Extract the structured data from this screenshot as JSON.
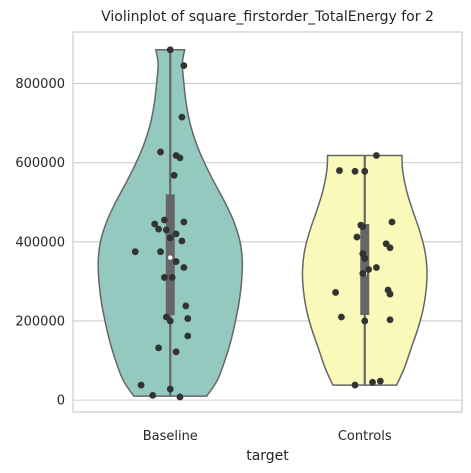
{
  "chart_data": {
    "type": "violin",
    "title": "Violinplot of square_firstorder_TotalEnergy for 2",
    "xlabel": "target",
    "ylabel": "",
    "categories": [
      "Baseline",
      "Controls"
    ],
    "ylim": [
      -30000,
      930000
    ],
    "yticks": [
      0,
      200000,
      400000,
      600000,
      800000
    ],
    "ytick_labels": [
      "0",
      "200000",
      "400000",
      "600000",
      "800000"
    ],
    "grid": true,
    "colors": {
      "Baseline": "#93c9be",
      "Controls": "#f9f9b9",
      "outline": "#666666",
      "points": "#333333",
      "grid": "#cccccc",
      "box": "#666666",
      "median": "#ffffff"
    },
    "violins": [
      {
        "name": "Baseline",
        "range": [
          10000,
          885000
        ],
        "profile": [
          [
            10000,
            0.48
          ],
          [
            50000,
            0.62
          ],
          [
            100000,
            0.72
          ],
          [
            150000,
            0.8
          ],
          [
            200000,
            0.86
          ],
          [
            250000,
            0.91
          ],
          [
            300000,
            0.94
          ],
          [
            350000,
            0.95
          ],
          [
            400000,
            0.92
          ],
          [
            450000,
            0.84
          ],
          [
            500000,
            0.72
          ],
          [
            550000,
            0.58
          ],
          [
            600000,
            0.45
          ],
          [
            650000,
            0.34
          ],
          [
            700000,
            0.26
          ],
          [
            750000,
            0.21
          ],
          [
            800000,
            0.18
          ],
          [
            850000,
            0.16
          ],
          [
            885000,
            0.19
          ]
        ],
        "box": {
          "q1": 215000,
          "median": 360000,
          "q3": 520000
        },
        "whisker": [
          10000,
          885000
        ],
        "points": [
          [
            0.0,
            885000
          ],
          [
            0.07,
            845000
          ],
          [
            0.06,
            715000
          ],
          [
            -0.05,
            627000
          ],
          [
            0.03,
            618000
          ],
          [
            0.05,
            612000
          ],
          [
            0.02,
            568000
          ],
          [
            -0.03,
            455000
          ],
          [
            0.07,
            450000
          ],
          [
            -0.08,
            445000
          ],
          [
            -0.06,
            432000
          ],
          [
            -0.02,
            430000
          ],
          [
            0.03,
            420000
          ],
          [
            0.0,
            410000
          ],
          [
            0.06,
            402000
          ],
          [
            -0.18,
            375000
          ],
          [
            -0.05,
            375000
          ],
          [
            0.03,
            350000
          ],
          [
            0.07,
            335000
          ],
          [
            -0.03,
            310000
          ],
          [
            0.01,
            310000
          ],
          [
            0.08,
            238000
          ],
          [
            0.09,
            206000
          ],
          [
            -0.02,
            210000
          ],
          [
            0.0,
            200000
          ],
          [
            0.09,
            162000
          ],
          [
            -0.06,
            132000
          ],
          [
            0.03,
            122000
          ],
          [
            -0.15,
            38000
          ],
          [
            0.0,
            28000
          ],
          [
            -0.09,
            12000
          ],
          [
            0.05,
            8000
          ]
        ]
      },
      {
        "name": "Controls",
        "range": [
          38000,
          618000
        ],
        "profile": [
          [
            38000,
            0.42
          ],
          [
            80000,
            0.52
          ],
          [
            130000,
            0.61
          ],
          [
            180000,
            0.7
          ],
          [
            230000,
            0.77
          ],
          [
            280000,
            0.81
          ],
          [
            330000,
            0.82
          ],
          [
            380000,
            0.79
          ],
          [
            430000,
            0.72
          ],
          [
            480000,
            0.63
          ],
          [
            530000,
            0.55
          ],
          [
            580000,
            0.5
          ],
          [
            618000,
            0.49
          ]
        ],
        "box": {
          "q1": 215000,
          "median": 320000,
          "q3": 445000
        },
        "whisker": [
          38000,
          618000
        ],
        "points": [
          [
            0.06,
            618000
          ],
          [
            -0.13,
            580000
          ],
          [
            -0.05,
            578000
          ],
          [
            0.0,
            578000
          ],
          [
            0.14,
            450000
          ],
          [
            -0.02,
            442000
          ],
          [
            -0.01,
            438000
          ],
          [
            -0.04,
            412000
          ],
          [
            0.11,
            395000
          ],
          [
            0.13,
            385000
          ],
          [
            -0.01,
            370000
          ],
          [
            0.0,
            358000
          ],
          [
            0.02,
            330000
          ],
          [
            0.06,
            335000
          ],
          [
            -0.01,
            320000
          ],
          [
            0.12,
            278000
          ],
          [
            0.13,
            268000
          ],
          [
            -0.15,
            272000
          ],
          [
            -0.12,
            210000
          ],
          [
            0.0,
            200000
          ],
          [
            0.13,
            203000
          ],
          [
            -0.05,
            38000
          ],
          [
            0.04,
            45000
          ],
          [
            0.08,
            48000
          ]
        ]
      }
    ]
  }
}
